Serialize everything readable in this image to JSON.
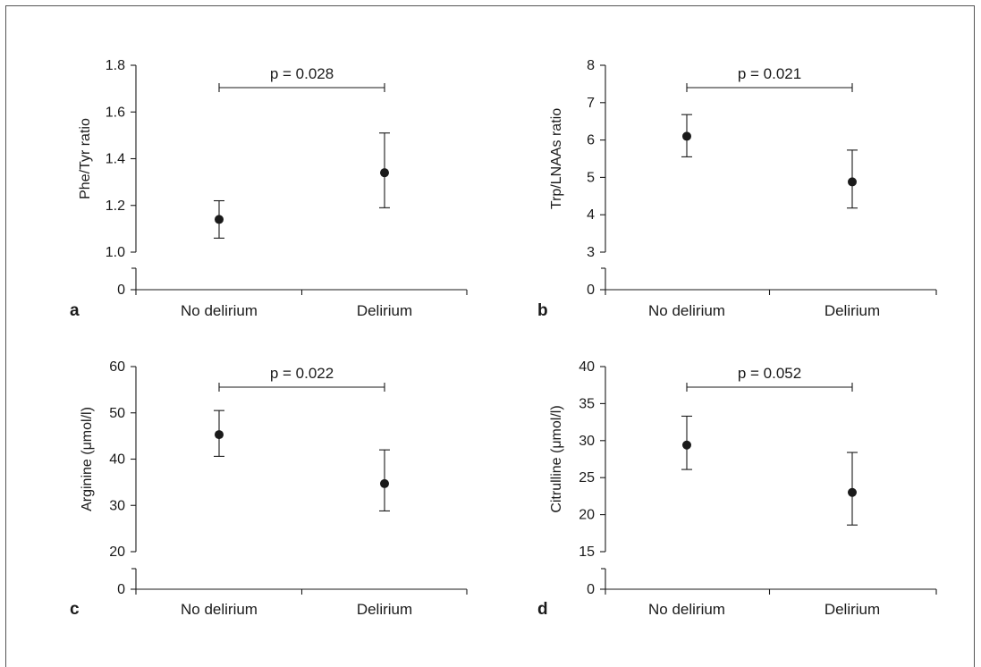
{
  "chart_data": [
    {
      "type": "scatter",
      "panel_label": "a",
      "categories": [
        "No delirium",
        "Delirium"
      ],
      "ylabel": "Phe/Tyr ratio",
      "yticks": [
        "0",
        "1.0",
        "1.2",
        "1.4",
        "1.6",
        "1.8"
      ],
      "ylim": [
        1.0,
        1.8
      ],
      "axis_break": true,
      "series": [
        {
          "values": [
            1.14,
            1.34
          ],
          "err_low": [
            1.06,
            1.19
          ],
          "err_high": [
            1.22,
            1.51
          ]
        }
      ],
      "annotation": "p = 0.028"
    },
    {
      "type": "scatter",
      "panel_label": "b",
      "categories": [
        "No delirium",
        "Delirium"
      ],
      "ylabel": "Trp/LNAAs ratio",
      "yticks": [
        "0",
        "3",
        "4",
        "5",
        "6",
        "7",
        "8"
      ],
      "ylim": [
        3,
        8
      ],
      "axis_break": true,
      "series": [
        {
          "values": [
            6.1,
            4.88
          ],
          "err_low": [
            5.55,
            4.18
          ],
          "err_high": [
            6.68,
            5.73
          ]
        }
      ],
      "annotation": "p = 0.021"
    },
    {
      "type": "scatter",
      "panel_label": "c",
      "categories": [
        "No delirium",
        "Delirium"
      ],
      "ylabel": "Arginine (μmol/l)",
      "yticks": [
        "0",
        "20",
        "30",
        "40",
        "50",
        "60"
      ],
      "ylim": [
        20,
        60
      ],
      "axis_break": true,
      "series": [
        {
          "values": [
            45.3,
            34.7
          ],
          "err_low": [
            40.6,
            28.8
          ],
          "err_high": [
            50.5,
            42.0
          ]
        }
      ],
      "annotation": "p = 0.022"
    },
    {
      "type": "scatter",
      "panel_label": "d",
      "categories": [
        "No delirium",
        "Delirium"
      ],
      "ylabel": "Citrulline (μmol/l)",
      "yticks": [
        "0",
        "15",
        "20",
        "25",
        "30",
        "35",
        "40"
      ],
      "ylim": [
        15,
        40
      ],
      "axis_break": true,
      "series": [
        {
          "values": [
            29.4,
            23.0
          ],
          "err_low": [
            26.1,
            18.6
          ],
          "err_high": [
            33.3,
            28.4
          ]
        }
      ],
      "annotation": "p = 0.052"
    }
  ]
}
